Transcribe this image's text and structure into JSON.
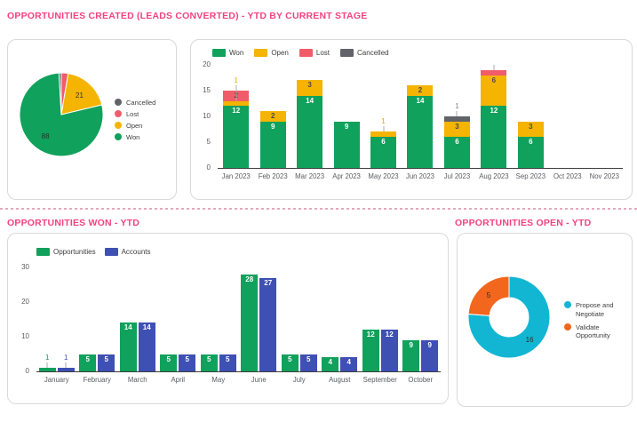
{
  "titles": {
    "top": "OPPORTUNITIES CREATED (LEADS CONVERTED) - YTD BY CURRENT STAGE",
    "bottom_left": "OPPORTUNITIES WON - YTD",
    "bottom_right": "OPPORTUNITIES OPEN - YTD"
  },
  "colors": {
    "accent_pink": "#F2437E",
    "won_green": "#10A15C",
    "open_yellow": "#F4B400",
    "lost_red": "#F05D69",
    "cancelled_gray": "#606367",
    "accounts_indigo": "#3E50B4",
    "propose_cyan": "#12B6D2",
    "validate_orange": "#F2661D"
  },
  "chart_data": [
    {
      "id": "stage_pie",
      "type": "pie",
      "legend_position": "right",
      "legend": [
        {
          "label": "Cancelled",
          "color": "#606367"
        },
        {
          "label": "Lost",
          "color": "#F05D69"
        },
        {
          "label": "Open",
          "color": "#F4B400"
        },
        {
          "label": "Won",
          "color": "#10A15C"
        }
      ],
      "slices": [
        {
          "label": "Lost",
          "value": 3,
          "color": "#F05D69",
          "show_value": false
        },
        {
          "label": "Open",
          "value": 21,
          "color": "#F4B400",
          "show_value": true
        },
        {
          "label": "Won",
          "value": 88,
          "color": "#10A15C",
          "show_value": true
        },
        {
          "label": "Cancelled",
          "value": 1,
          "color": "#606367",
          "show_value": false
        }
      ]
    },
    {
      "id": "stage_stacked",
      "type": "bar",
      "stacked": true,
      "ylim": [
        0,
        20
      ],
      "yticks": [
        0,
        5,
        10,
        15,
        20
      ],
      "legend_position": "top",
      "legend": [
        {
          "label": "Won",
          "color": "#10A15C"
        },
        {
          "label": "Open",
          "color": "#F4B400"
        },
        {
          "label": "Lost",
          "color": "#F05D69"
        },
        {
          "label": "Cancelled",
          "color": "#606367"
        }
      ],
      "categories": [
        "Jan 2023",
        "Feb 2023",
        "Mar 2023",
        "Apr 2023",
        "May 2023",
        "Jun 2023",
        "Jul 2023",
        "Aug 2023",
        "Sep 2023",
        "Oct 2023",
        "Nov 2023"
      ],
      "bars": [
        {
          "category": "Jan 2023",
          "segments": [
            {
              "name": "Won",
              "value": 12,
              "color": "#10A15C",
              "label": "12",
              "label_mode": "in",
              "label_color": "#FFFFFF"
            },
            {
              "name": "Open",
              "value": 1,
              "color": "#F4B400",
              "label": "1",
              "label_mode": "leader",
              "label_color": "#E8A400"
            },
            {
              "name": "Lost",
              "value": 2,
              "color": "#F05D69",
              "label": "2",
              "label_mode": "in",
              "label_color": "#4A4A4A"
            }
          ]
        },
        {
          "category": "Feb 2023",
          "segments": [
            {
              "name": "Won",
              "value": 9,
              "color": "#10A15C",
              "label": "9",
              "label_mode": "in",
              "label_color": "#FFFFFF"
            },
            {
              "name": "Open",
              "value": 2,
              "color": "#F4B400",
              "label": "2",
              "label_mode": "in",
              "label_color": "#4A4A4A"
            }
          ]
        },
        {
          "category": "Mar 2023",
          "segments": [
            {
              "name": "Won",
              "value": 14,
              "color": "#10A15C",
              "label": "14",
              "label_mode": "in",
              "label_color": "#FFFFFF"
            },
            {
              "name": "Open",
              "value": 3,
              "color": "#F4B400",
              "label": "3",
              "label_mode": "in",
              "label_color": "#4A4A4A"
            }
          ]
        },
        {
          "category": "Apr 2023",
          "segments": [
            {
              "name": "Won",
              "value": 9,
              "color": "#10A15C",
              "label": "9",
              "label_mode": "in",
              "label_color": "#FFFFFF"
            }
          ]
        },
        {
          "category": "May 2023",
          "segments": [
            {
              "name": "Won",
              "value": 6,
              "color": "#10A15C",
              "label": "6",
              "label_mode": "in",
              "label_color": "#FFFFFF"
            },
            {
              "name": "Open",
              "value": 1,
              "color": "#F4B400",
              "label": "1",
              "label_mode": "leader",
              "label_color": "#E8A400"
            }
          ]
        },
        {
          "category": "Jun 2023",
          "segments": [
            {
              "name": "Won",
              "value": 14,
              "color": "#10A15C",
              "label": "14",
              "label_mode": "in",
              "label_color": "#FFFFFF"
            },
            {
              "name": "Open",
              "value": 2,
              "color": "#F4B400",
              "label": "2",
              "label_mode": "in",
              "label_color": "#4A4A4A"
            }
          ]
        },
        {
          "category": "Jul 2023",
          "segments": [
            {
              "name": "Won",
              "value": 6,
              "color": "#10A15C",
              "label": "6",
              "label_mode": "in",
              "label_color": "#FFFFFF"
            },
            {
              "name": "Open",
              "value": 3,
              "color": "#F4B400",
              "label": "3",
              "label_mode": "in",
              "label_color": "#4A4A4A"
            },
            {
              "name": "Cancelled",
              "value": 1,
              "color": "#606367",
              "label": "1",
              "label_mode": "leader",
              "label_color": "#8A8A8A"
            }
          ]
        },
        {
          "category": "Aug 2023",
          "segments": [
            {
              "name": "Won",
              "value": 12,
              "color": "#10A15C",
              "label": "12",
              "label_mode": "in",
              "label_color": "#FFFFFF"
            },
            {
              "name": "Open",
              "value": 6,
              "color": "#F4B400",
              "label": "6",
              "label_mode": "in",
              "label_color": "#4A4A4A"
            },
            {
              "name": "Lost",
              "value": 1,
              "color": "#F05D69",
              "label": "",
              "label_mode": "leader",
              "label_color": "#F05D69"
            }
          ]
        },
        {
          "category": "Sep 2023",
          "segments": [
            {
              "name": "Won",
              "value": 6,
              "color": "#10A15C",
              "label": "6",
              "label_mode": "in",
              "label_color": "#FFFFFF"
            },
            {
              "name": "Open",
              "value": 3,
              "color": "#F4B400",
              "label": "3",
              "label_mode": "in",
              "label_color": "#4A4A4A"
            }
          ]
        },
        {
          "category": "Oct 2023",
          "segments": []
        },
        {
          "category": "Nov 2023",
          "segments": []
        }
      ]
    },
    {
      "id": "won_grouped",
      "type": "bar",
      "stacked": false,
      "ylim": [
        0,
        30
      ],
      "yticks": [
        0,
        10,
        20,
        30
      ],
      "legend_position": "top",
      "legend": [
        {
          "label": "Opportunities",
          "color": "#10A15C"
        },
        {
          "label": "Accounts",
          "color": "#3E50B4"
        }
      ],
      "categories": [
        "January",
        "February",
        "March",
        "April",
        "May",
        "June",
        "July",
        "August",
        "September",
        "October"
      ],
      "series": [
        {
          "name": "Opportunities",
          "color": "#10A15C",
          "values": [
            1,
            5,
            14,
            5,
            5,
            28,
            5,
            4,
            12,
            9
          ]
        },
        {
          "name": "Accounts",
          "color": "#3E50B4",
          "values": [
            1,
            5,
            14,
            5,
            5,
            27,
            5,
            4,
            12,
            9
          ]
        }
      ]
    },
    {
      "id": "open_donut",
      "type": "pie",
      "donut": true,
      "legend_position": "right",
      "legend": [
        {
          "label": "Propose and Negotiate",
          "color": "#12B6D2"
        },
        {
          "label": "Validate Opportunity",
          "color": "#F2661D"
        }
      ],
      "slices": [
        {
          "label": "Propose and Negotiate",
          "value": 16,
          "color": "#12B6D2",
          "show_value": true
        },
        {
          "label": "Validate Opportunity",
          "value": 5,
          "color": "#F2661D",
          "show_value": true
        }
      ]
    }
  ]
}
